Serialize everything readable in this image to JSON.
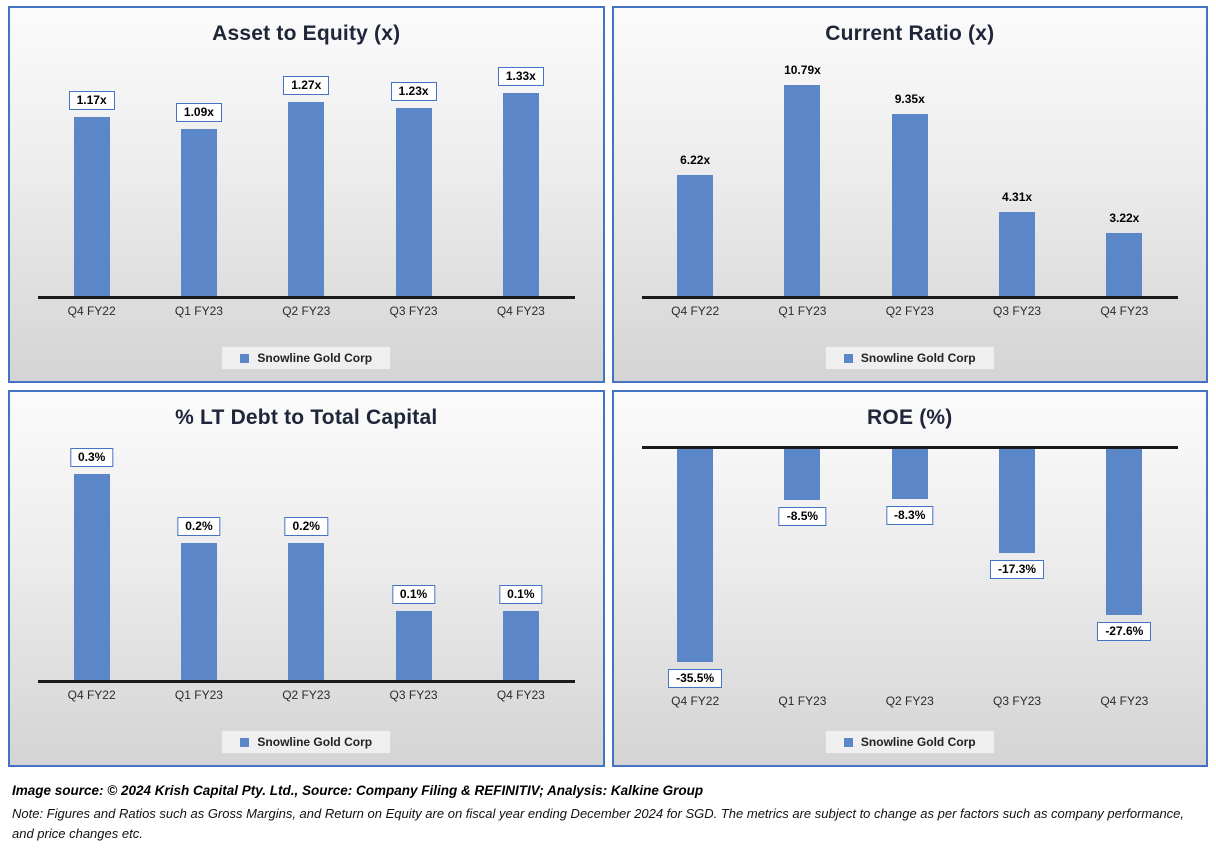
{
  "chart_data": [
    {
      "type": "bar",
      "title": "Asset to Equity (x)",
      "categories": [
        "Q4 FY22",
        "Q1 FY23",
        "Q2 FY23",
        "Q3 FY23",
        "Q4 FY23"
      ],
      "values": [
        1.17,
        1.09,
        1.27,
        1.23,
        1.33
      ],
      "value_labels": [
        "1.17x",
        "1.09x",
        "1.27x",
        "1.23x",
        "1.33x"
      ],
      "series_name": "Snowline Gold Corp",
      "ylim": [
        0,
        1.57
      ],
      "direction": "up",
      "label_boxed": true,
      "grid": false,
      "legend_position": "bottom"
    },
    {
      "type": "bar",
      "title": "Current Ratio (x)",
      "categories": [
        "Q4 FY22",
        "Q1 FY23",
        "Q2 FY23",
        "Q3 FY23",
        "Q4 FY23"
      ],
      "values": [
        6.22,
        10.79,
        9.35,
        4.31,
        3.22
      ],
      "value_labels": [
        "6.22x",
        "10.79x",
        "9.35x",
        "4.31x",
        "3.22x"
      ],
      "series_name": "Snowline Gold Corp",
      "ylim": [
        0,
        12.3
      ],
      "direction": "up",
      "label_boxed": false,
      "grid": false,
      "legend_position": "bottom"
    },
    {
      "type": "bar",
      "title": "% LT Debt to Total Capital",
      "categories": [
        "Q4 FY22",
        "Q1 FY23",
        "Q2 FY23",
        "Q3 FY23",
        "Q4 FY23"
      ],
      "values": [
        0.3,
        0.2,
        0.2,
        0.1,
        0.1
      ],
      "value_labels": [
        "0.3%",
        "0.2%",
        "0.2%",
        "0.1%",
        "0.1%"
      ],
      "series_name": "Snowline Gold Corp",
      "ylim": [
        0,
        0.35
      ],
      "direction": "up",
      "label_boxed": true,
      "grid": false,
      "legend_position": "bottom"
    },
    {
      "type": "bar",
      "title": "ROE (%)",
      "categories": [
        "Q4 FY22",
        "Q1 FY23",
        "Q2 FY23",
        "Q3 FY23",
        "Q4 FY23"
      ],
      "values": [
        -35.5,
        -8.5,
        -8.3,
        -17.3,
        -27.6
      ],
      "value_labels": [
        "-35.5%",
        "-8.5%",
        "-8.3%",
        "-17.3%",
        "-27.6%"
      ],
      "series_name": "Snowline Gold Corp",
      "ylim": [
        -40,
        0
      ],
      "direction": "down",
      "label_boxed": true,
      "grid": false,
      "legend_position": "bottom"
    }
  ],
  "footer": {
    "source_line": "Image source: © 2024 Krish Capital Pty. Ltd., Source: Company Filing & REFINITIV; Analysis: Kalkine Group",
    "note_line": "Note: Figures and Ratios such as  Gross Margins, and Return on Equity are on fiscal year ending  December  2024  for SGD. The metrics are subject to change as per factors such as company performance, and price changes etc."
  },
  "colors": {
    "bar": "#5B87C9",
    "panel_border": "#4472C4",
    "label_box_border": "#4472C4",
    "axis": "#1a1a1a"
  }
}
